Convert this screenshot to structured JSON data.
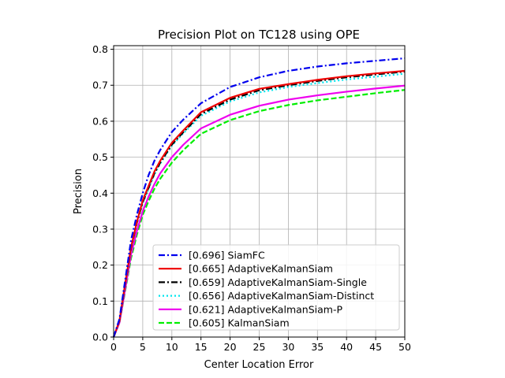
{
  "chart_data": {
    "type": "line",
    "title": "Precision Plot on TC128 using OPE",
    "xlabel": "Center Location Error",
    "ylabel": "Precision",
    "xlim": [
      0,
      50
    ],
    "ylim": [
      0,
      0.81
    ],
    "xticks": [
      0,
      5,
      10,
      15,
      20,
      25,
      30,
      35,
      40,
      45,
      50
    ],
    "yticks": [
      0.0,
      0.1,
      0.2,
      0.3,
      0.4,
      0.5,
      0.6,
      0.7,
      0.8
    ],
    "xtick_labels": [
      "0",
      "5",
      "10",
      "15",
      "20",
      "25",
      "30",
      "35",
      "40",
      "45",
      "50"
    ],
    "ytick_labels": [
      "0.0",
      "0.1",
      "0.2",
      "0.3",
      "0.4",
      "0.5",
      "0.6",
      "0.7",
      "0.8"
    ],
    "grid": true,
    "legend_position": "lower right",
    "x": [
      0,
      1,
      2,
      3,
      4,
      5,
      6,
      7,
      8,
      10,
      12,
      15,
      20,
      25,
      30,
      35,
      40,
      45,
      50
    ],
    "series": [
      {
        "name": "[0.696] SiamFC",
        "color": "#0000ee",
        "style": "dashdot",
        "values": [
          0.0,
          0.05,
          0.16,
          0.27,
          0.34,
          0.4,
          0.45,
          0.49,
          0.52,
          0.57,
          0.605,
          0.65,
          0.695,
          0.722,
          0.74,
          0.752,
          0.761,
          0.768,
          0.775
        ]
      },
      {
        "name": "[0.665] AdaptiveKalmanSiam",
        "color": "#ee0000",
        "style": "solid",
        "values": [
          0.0,
          0.045,
          0.15,
          0.25,
          0.32,
          0.38,
          0.42,
          0.46,
          0.49,
          0.54,
          0.575,
          0.625,
          0.665,
          0.69,
          0.703,
          0.715,
          0.725,
          0.733,
          0.74
        ]
      },
      {
        "name": "[0.659] AdaptiveKalmanSiam-Single",
        "color": "#000000",
        "style": "dashdot",
        "values": [
          0.0,
          0.045,
          0.148,
          0.248,
          0.318,
          0.375,
          0.415,
          0.455,
          0.485,
          0.535,
          0.57,
          0.62,
          0.66,
          0.686,
          0.7,
          0.712,
          0.722,
          0.73,
          0.738
        ]
      },
      {
        "name": "[0.656] AdaptiveKalmanSiam-Distinct",
        "color": "#00e5ee",
        "style": "dotted",
        "values": [
          0.0,
          0.045,
          0.146,
          0.245,
          0.315,
          0.372,
          0.412,
          0.452,
          0.482,
          0.532,
          0.567,
          0.615,
          0.655,
          0.68,
          0.695,
          0.706,
          0.716,
          0.724,
          0.732
        ]
      },
      {
        "name": "[0.621] AdaptiveKalmanSiam-P",
        "color": "#ee00ee",
        "style": "solid",
        "values": [
          0.0,
          0.04,
          0.135,
          0.23,
          0.295,
          0.35,
          0.39,
          0.425,
          0.455,
          0.5,
          0.535,
          0.58,
          0.618,
          0.643,
          0.66,
          0.672,
          0.682,
          0.691,
          0.699
        ]
      },
      {
        "name": "[0.605] KalmanSiam",
        "color": "#00ee00",
        "style": "dashed",
        "values": [
          0.0,
          0.04,
          0.13,
          0.22,
          0.285,
          0.34,
          0.378,
          0.412,
          0.44,
          0.485,
          0.52,
          0.565,
          0.603,
          0.628,
          0.645,
          0.658,
          0.668,
          0.678,
          0.687
        ]
      }
    ]
  }
}
